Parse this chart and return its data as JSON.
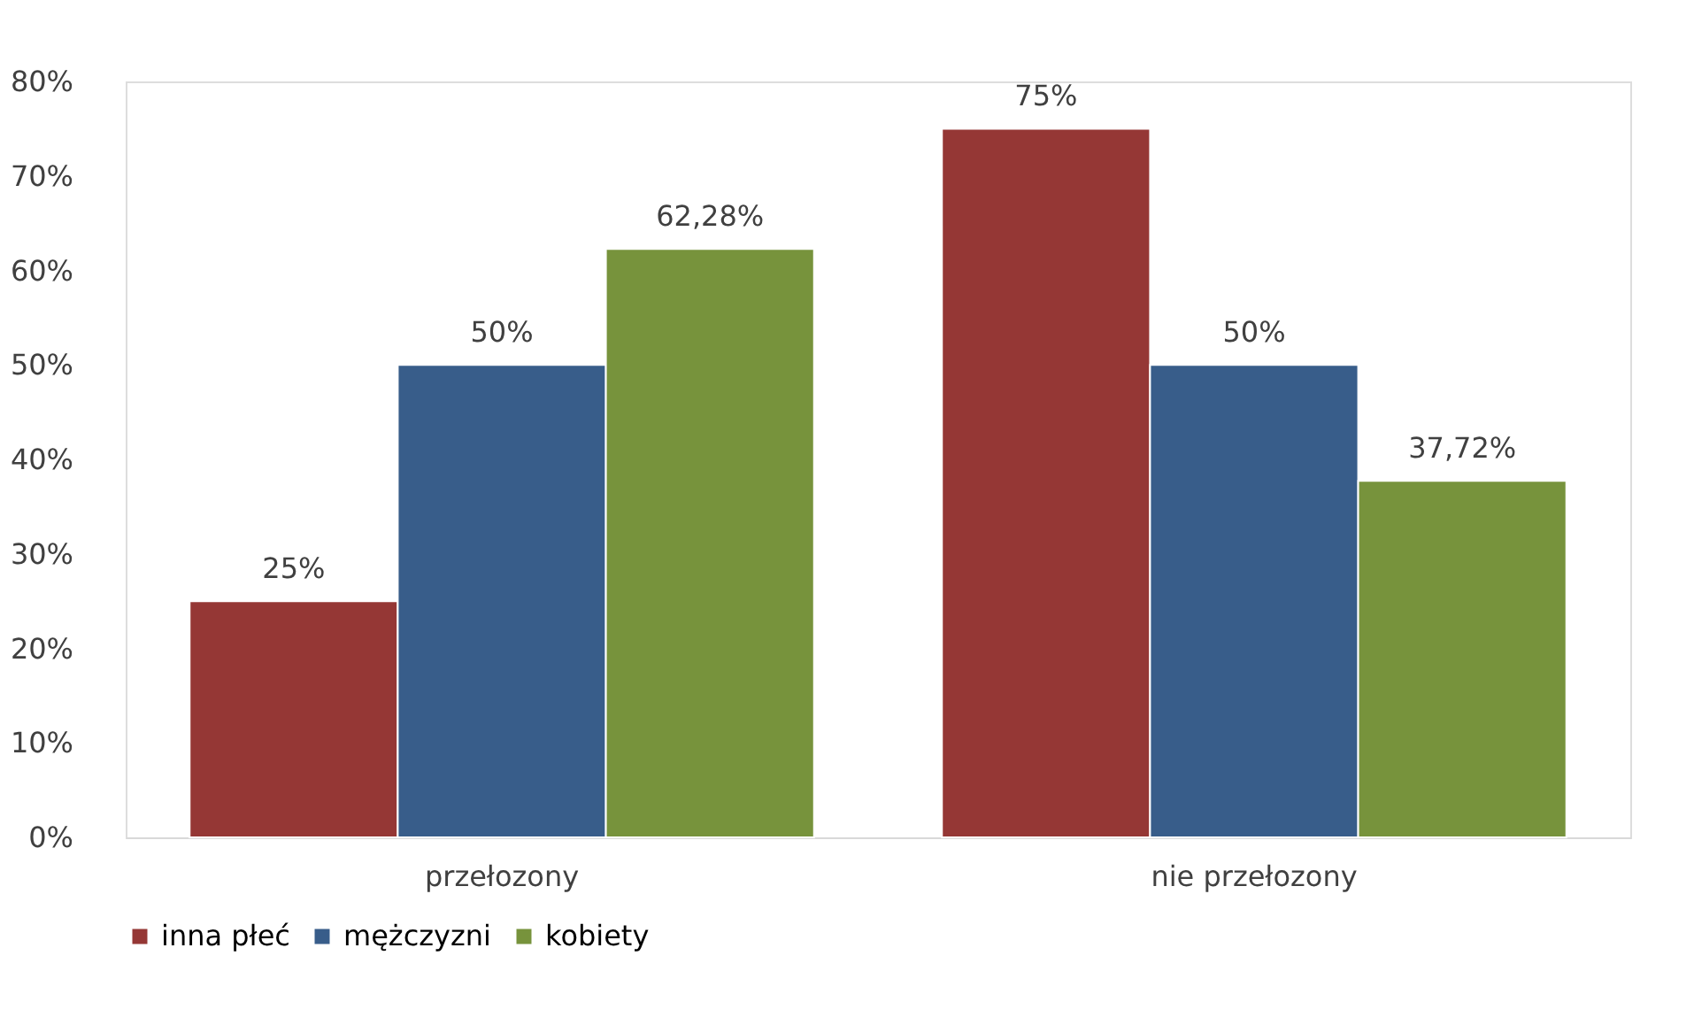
{
  "chart_data": {
    "type": "bar",
    "categories": [
      "przełozony",
      "nie przełozony"
    ],
    "series": [
      {
        "name": "inna płeć",
        "color": "#953735",
        "values": [
          25,
          75
        ],
        "value_labels": [
          "25%",
          "75%"
        ]
      },
      {
        "name": "mężczyzni",
        "color": "#385d8a",
        "values": [
          50,
          50
        ],
        "value_labels": [
          "50%",
          "50%"
        ]
      },
      {
        "name": "kobiety",
        "color": "#77933c",
        "values": [
          62.28,
          37.72
        ],
        "value_labels": [
          "62,28%",
          "37,72%"
        ]
      }
    ],
    "ylim": [
      0,
      80
    ],
    "yticks": [
      {
        "value": 0,
        "label": "0%"
      },
      {
        "value": 10,
        "label": "10%"
      },
      {
        "value": 20,
        "label": "20%"
      },
      {
        "value": 30,
        "label": "30%"
      },
      {
        "value": 40,
        "label": "40%"
      },
      {
        "value": 50,
        "label": "50%"
      },
      {
        "value": 60,
        "label": "60%"
      },
      {
        "value": 70,
        "label": "70%"
      },
      {
        "value": 80,
        "label": "80%"
      }
    ],
    "grid": false,
    "legend": "bottom"
  }
}
